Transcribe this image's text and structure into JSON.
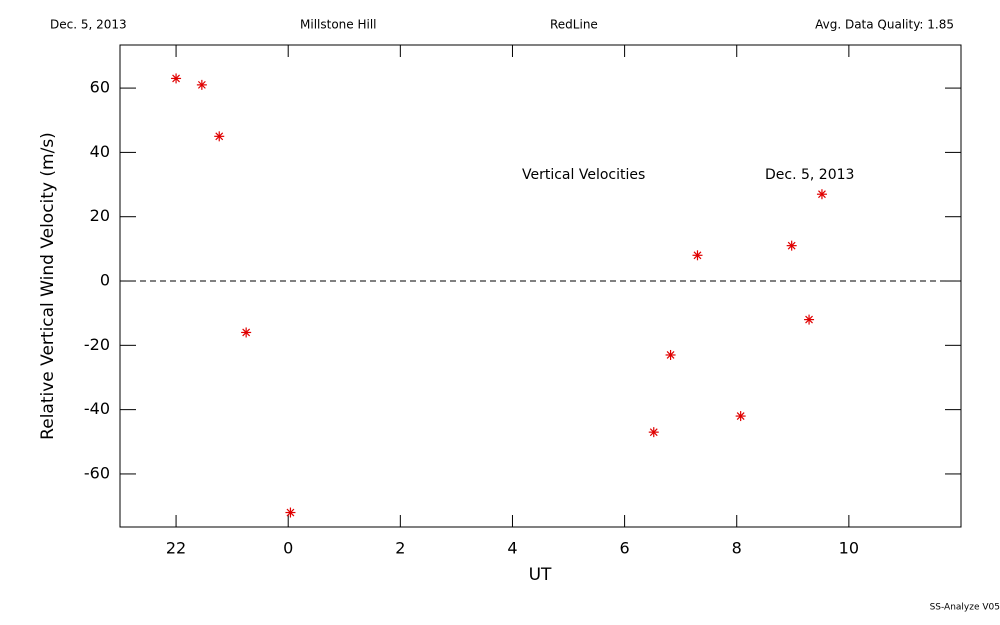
{
  "chart_data": {
    "type": "scatter",
    "header": [
      "Dec. 5, 2013",
      "Millstone Hill",
      "RedLine",
      "Avg. Data Quality: 1.85"
    ],
    "annotations": [
      "Vertical Velocities",
      "Dec. 5, 2013"
    ],
    "footer": "SS-Analyze V05",
    "x_label": "UT",
    "y_label": "Relative Vertical Wind Velocity (m/s)",
    "color": "#e00000",
    "reference_line": 0,
    "xlim": [
      -3,
      12
    ],
    "ylim": [
      -76.5,
      73.4
    ],
    "xticks": [
      {
        "value": -2,
        "label": "22"
      },
      0,
      2,
      4,
      6,
      8,
      10
    ],
    "yticks": [
      -60,
      -40,
      -20,
      0,
      20,
      40,
      60
    ],
    "x": [
      -2.0,
      -1.54,
      -1.23,
      -0.75,
      0.04,
      6.52,
      6.82,
      7.3,
      8.07,
      8.98,
      9.29,
      9.52
    ],
    "values": [
      63,
      61,
      45,
      -16,
      -72,
      -47,
      -23,
      8,
      -42,
      11,
      -12,
      27
    ]
  }
}
